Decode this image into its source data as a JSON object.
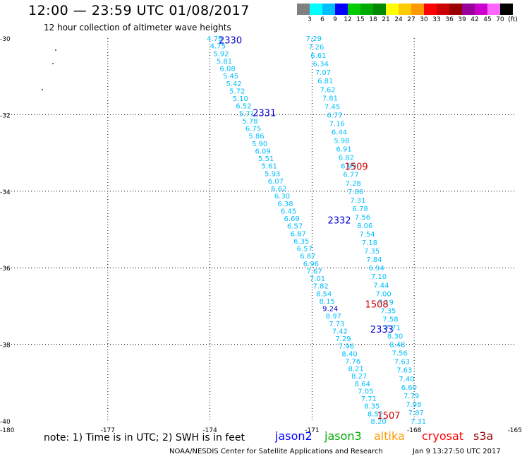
{
  "header": {
    "title": "12:00 — 23:59 UTC 01/08/2017",
    "subtitle": "12 hour collection of altimeter wave heights"
  },
  "colorbar": {
    "colors": [
      "#808080",
      "#00ffff",
      "#00bfff",
      "#0000ff",
      "#00cc00",
      "#00aa00",
      "#008800",
      "#ffff00",
      "#ffcc00",
      "#ff9900",
      "#ff0000",
      "#cc0000",
      "#990000",
      "#990099",
      "#cc00cc",
      "#ff66ff",
      "#000000"
    ],
    "labels": [
      "3",
      "6",
      "9",
      "12",
      "15",
      "18",
      "21",
      "24",
      "27",
      "30",
      "33",
      "36",
      "39",
      "42",
      "45",
      "70",
      "(ft)"
    ]
  },
  "axes": {
    "lon_range": [
      -180,
      -165
    ],
    "lat_range": [
      -40,
      -30
    ],
    "lon_ticks": [
      "-180",
      "-177",
      "-174",
      "-171",
      "-168",
      "-165"
    ],
    "lat_ticks": [
      "-30",
      "-32",
      "-34",
      "-36",
      "-38",
      "-40"
    ]
  },
  "track_colors": {
    "jason2": "#0000cc",
    "cryosat": "#cc0000",
    "swh": "#00bfff",
    "swh_highlight": "#0000cc"
  },
  "tracks": [
    {
      "lon_start": -173.86,
      "lon_end": -169.05,
      "values": [
        "4.79",
        "4.75",
        "5.92",
        "5.81",
        "6.08",
        "5.45",
        "5.42",
        "5.72",
        "5.10",
        "6.52",
        "5.71",
        "5.78",
        "6.75",
        "5.86",
        "5.90",
        "6.09",
        "5.51",
        "5.61",
        "5.93",
        "6.07",
        "6.62",
        "6.30",
        "6.38",
        "6.45",
        "6.69",
        "6.57",
        "6.87",
        "6.35",
        "6.57",
        "6.87",
        "6.96",
        "7.67",
        "7.01",
        "7.82",
        "8.54",
        "8.15",
        "9.24",
        "8.97",
        "7.73",
        "7.42",
        "7.29",
        "7.96",
        "8.40",
        "7.76",
        "8.21",
        "8.27",
        "8.64",
        "7.05",
        "7.71",
        "8.35",
        "8.52",
        "8.20"
      ],
      "highlight_index": 36
    },
    {
      "lon_start": -170.95,
      "lon_end": -167.88,
      "values": [
        "7.29",
        "7.26",
        "6.61",
        "6.34",
        "7.07",
        "6.81",
        "7.62",
        "7.81",
        "7.45",
        "6.77",
        "7.16",
        "6.44",
        "5.98",
        "6.91",
        "6.82",
        "6.99",
        "6.77",
        "7.28",
        "7.86",
        "7.31",
        "6.78",
        "7.56",
        "8.06",
        "7.54",
        "7.18",
        "7.35",
        "7.84",
        "6.94",
        "7.10",
        "7.44",
        "7.00",
        "7.19",
        "7.35",
        "7.58",
        "7.71",
        "8.30",
        "8.48",
        "7.56",
        "7.63",
        "7.63",
        "7.40",
        "6.60",
        "7.79",
        "7.98",
        "7.87",
        "7.31"
      ],
      "highlight_index": -1
    }
  ],
  "pass_labels": [
    {
      "text": "2330",
      "lon": -173.4,
      "lat": -30.05,
      "color": "#0000cc"
    },
    {
      "text": "2331",
      "lon": -172.4,
      "lat": -31.95,
      "color": "#0000cc"
    },
    {
      "text": "1509",
      "lon": -169.7,
      "lat": -33.35,
      "color": "#cc0000"
    },
    {
      "text": "2332",
      "lon": -170.2,
      "lat": -34.75,
      "color": "#0000cc"
    },
    {
      "text": "1508",
      "lon": -169.1,
      "lat": -36.95,
      "color": "#cc0000"
    },
    {
      "text": "2333",
      "lon": -168.95,
      "lat": -37.6,
      "color": "#0000cc"
    },
    {
      "text": "1507",
      "lon": -168.75,
      "lat": -39.85,
      "color": "#cc0000"
    }
  ],
  "footer": {
    "note": "note:  1) Time is in UTC;  2) SWH is in feet",
    "legend": [
      {
        "name": "jason2",
        "color": "#0000ff"
      },
      {
        "name": "jason3",
        "color": "#00aa00"
      },
      {
        "name": "altika",
        "color": "#ff9900"
      },
      {
        "name": "cryosat",
        "color": "#ff0000"
      },
      {
        "name": "s3a",
        "color": "#990000"
      }
    ],
    "credit": "NOAA/NESDIS Center for Satellite Applications and Research",
    "timestamp": "Jan  9 13:27:50 UTC 2017"
  }
}
